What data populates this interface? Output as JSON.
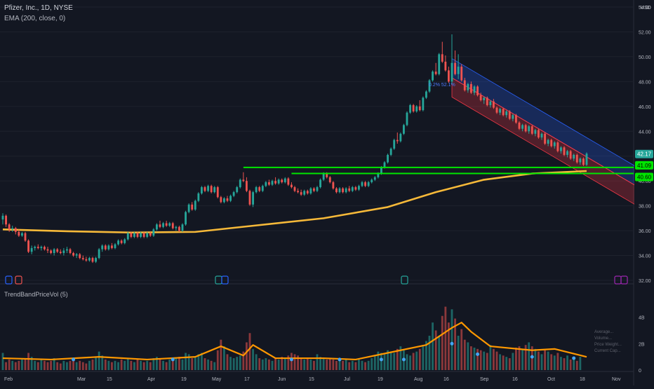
{
  "header": {
    "symbol_line": "Pfizer, Inc., 1D, NYSE",
    "indicator_line": "EMA (200, close, 0)",
    "sub_indicator": "TrendBandPriceVol (5)",
    "currency": "USD",
    "channel_label": "0.2%  52.1%",
    "vol_stats": [
      "Average...",
      "Volume...",
      "Price Weight...",
      "Current Cap..."
    ]
  },
  "chart_data": {
    "type": "candlestick",
    "x_axis_labels": [
      "Feb",
      "Mar",
      "15",
      "Apr",
      "19",
      "May",
      "17",
      "Jun",
      "15",
      "Jul",
      "19",
      "Aug",
      "16",
      "Sep",
      "16",
      "Oct",
      "18",
      "Nov"
    ],
    "price_axis": {
      "ticks": [
        "54.00",
        "52.00",
        "50.00",
        "48.00",
        "46.00",
        "44.00",
        "42.00",
        "40.00",
        "38.00",
        "36.00",
        "34.00",
        "32.00"
      ],
      "ylim": [
        32,
        54
      ]
    },
    "volume_axis": {
      "ticks": [
        "4B",
        "2B",
        "0"
      ]
    },
    "last_price": "42.17",
    "level_labels": [
      "41.09",
      "40.60"
    ],
    "ohlc": [
      [
        36.9,
        37.4,
        36.5,
        37.2
      ],
      [
        37.2,
        37.3,
        36.3,
        36.5
      ],
      [
        36.5,
        36.6,
        35.9,
        36.1
      ],
      [
        36.1,
        36.4,
        35.9,
        36.2
      ],
      [
        36.2,
        36.3,
        35.7,
        35.9
      ],
      [
        35.9,
        36.1,
        35.5,
        35.6
      ],
      [
        35.6,
        35.9,
        35.5,
        35.8
      ],
      [
        35.8,
        35.9,
        35.1,
        35.2
      ],
      [
        35.2,
        35.3,
        34.2,
        34.3
      ],
      [
        34.3,
        34.8,
        34.1,
        34.6
      ],
      [
        34.6,
        34.8,
        34.4,
        34.7
      ],
      [
        34.7,
        34.9,
        34.5,
        34.6
      ],
      [
        34.6,
        34.8,
        34.4,
        34.7
      ],
      [
        34.7,
        34.8,
        34.4,
        34.5
      ],
      [
        34.5,
        34.7,
        34.2,
        34.4
      ],
      [
        34.4,
        34.5,
        34.1,
        34.2
      ],
      [
        34.2,
        34.6,
        34.0,
        34.5
      ],
      [
        34.5,
        34.6,
        34.2,
        34.3
      ],
      [
        34.3,
        34.5,
        34.1,
        34.2
      ],
      [
        34.2,
        34.6,
        34.0,
        34.4
      ],
      [
        34.4,
        34.7,
        34.2,
        34.5
      ],
      [
        34.5,
        34.6,
        34.1,
        34.2
      ],
      [
        34.2,
        34.3,
        33.9,
        34.0
      ],
      [
        34.0,
        34.2,
        33.8,
        34.1
      ],
      [
        34.1,
        34.2,
        33.7,
        33.8
      ],
      [
        33.8,
        34.0,
        33.6,
        33.7
      ],
      [
        33.7,
        33.9,
        33.5,
        33.6
      ],
      [
        33.6,
        33.9,
        33.5,
        33.8
      ],
      [
        33.8,
        33.9,
        33.4,
        33.5
      ],
      [
        33.5,
        33.9,
        33.4,
        33.8
      ],
      [
        33.8,
        34.6,
        33.7,
        34.5
      ],
      [
        34.5,
        34.9,
        34.3,
        34.8
      ],
      [
        34.8,
        34.9,
        34.4,
        34.5
      ],
      [
        34.5,
        34.9,
        34.4,
        34.8
      ],
      [
        34.8,
        35.0,
        34.5,
        34.6
      ],
      [
        34.6,
        35.0,
        34.5,
        34.9
      ],
      [
        34.9,
        35.3,
        34.8,
        35.2
      ],
      [
        35.2,
        35.3,
        34.9,
        35.0
      ],
      [
        35.0,
        35.4,
        34.9,
        35.3
      ],
      [
        35.3,
        35.9,
        35.2,
        35.8
      ],
      [
        35.8,
        35.9,
        35.4,
        35.5
      ],
      [
        35.5,
        35.9,
        35.4,
        35.8
      ],
      [
        35.8,
        35.9,
        35.4,
        35.5
      ],
      [
        35.5,
        35.9,
        35.4,
        35.8
      ],
      [
        35.8,
        35.9,
        35.4,
        35.5
      ],
      [
        35.5,
        35.9,
        35.4,
        35.8
      ],
      [
        35.8,
        35.9,
        35.5,
        35.6
      ],
      [
        35.6,
        36.2,
        35.5,
        36.1
      ],
      [
        36.1,
        36.6,
        36.0,
        36.5
      ],
      [
        36.5,
        36.8,
        36.2,
        36.3
      ],
      [
        36.3,
        36.7,
        36.2,
        36.6
      ],
      [
        36.6,
        36.8,
        36.3,
        36.4
      ],
      [
        36.4,
        36.7,
        36.3,
        36.6
      ],
      [
        36.6,
        36.7,
        36.1,
        36.2
      ],
      [
        36.2,
        36.4,
        36.0,
        36.3
      ],
      [
        36.3,
        36.4,
        35.9,
        36.0
      ],
      [
        36.0,
        36.6,
        35.9,
        36.5
      ],
      [
        36.5,
        37.6,
        36.4,
        37.5
      ],
      [
        37.5,
        38.2,
        37.4,
        38.1
      ],
      [
        38.1,
        38.3,
        37.6,
        37.7
      ],
      [
        37.7,
        38.5,
        37.6,
        38.4
      ],
      [
        38.4,
        39.1,
        38.3,
        39.0
      ],
      [
        39.0,
        39.6,
        38.9,
        39.5
      ],
      [
        39.5,
        39.6,
        39.1,
        39.2
      ],
      [
        39.2,
        39.7,
        39.1,
        39.6
      ],
      [
        39.6,
        39.7,
        39.0,
        39.1
      ],
      [
        39.1,
        39.6,
        39.0,
        39.5
      ],
      [
        39.5,
        39.6,
        38.6,
        38.7
      ],
      [
        38.7,
        38.8,
        38.2,
        38.3
      ],
      [
        38.3,
        38.7,
        38.2,
        38.6
      ],
      [
        38.6,
        38.8,
        38.3,
        38.4
      ],
      [
        38.4,
        38.9,
        38.3,
        38.8
      ],
      [
        38.8,
        39.2,
        38.7,
        39.1
      ],
      [
        39.1,
        39.6,
        39.0,
        39.5
      ],
      [
        39.5,
        40.2,
        39.4,
        40.1
      ],
      [
        40.1,
        40.7,
        39.9,
        40.0
      ],
      [
        40.0,
        40.3,
        39.1,
        39.2
      ],
      [
        39.2,
        39.3,
        38.0,
        38.1
      ],
      [
        38.1,
        39.2,
        37.9,
        39.1
      ],
      [
        39.1,
        39.6,
        39.0,
        39.5
      ],
      [
        39.5,
        39.6,
        39.1,
        39.2
      ],
      [
        39.2,
        39.7,
        39.1,
        39.6
      ],
      [
        39.6,
        40.0,
        39.5,
        39.9
      ],
      [
        39.9,
        40.1,
        39.6,
        39.7
      ],
      [
        39.7,
        40.1,
        39.6,
        40.0
      ],
      [
        40.0,
        40.3,
        39.7,
        39.8
      ],
      [
        39.8,
        40.2,
        39.7,
        40.1
      ],
      [
        40.1,
        40.2,
        39.8,
        39.9
      ],
      [
        39.9,
        40.3,
        39.8,
        40.2
      ],
      [
        40.2,
        40.3,
        39.6,
        39.7
      ],
      [
        39.7,
        39.9,
        39.4,
        39.5
      ],
      [
        39.5,
        39.6,
        39.1,
        39.2
      ],
      [
        39.2,
        39.4,
        39.0,
        39.1
      ],
      [
        39.1,
        39.3,
        38.8,
        38.9
      ],
      [
        38.9,
        39.3,
        38.8,
        39.2
      ],
      [
        39.2,
        39.3,
        38.9,
        39.0
      ],
      [
        39.0,
        39.5,
        38.9,
        39.4
      ],
      [
        39.4,
        39.5,
        39.1,
        39.2
      ],
      [
        39.2,
        39.6,
        39.1,
        39.5
      ],
      [
        39.5,
        40.2,
        39.4,
        40.1
      ],
      [
        40.1,
        40.7,
        40.0,
        40.6
      ],
      [
        40.6,
        40.7,
        40.2,
        40.3
      ],
      [
        40.3,
        40.4,
        39.8,
        39.9
      ],
      [
        39.9,
        40.0,
        39.3,
        39.4
      ],
      [
        39.4,
        39.5,
        39.0,
        39.1
      ],
      [
        39.1,
        39.5,
        39.0,
        39.4
      ],
      [
        39.4,
        39.5,
        39.0,
        39.1
      ],
      [
        39.1,
        39.5,
        39.0,
        39.4
      ],
      [
        39.4,
        39.6,
        39.1,
        39.2
      ],
      [
        39.2,
        39.6,
        39.1,
        39.5
      ],
      [
        39.5,
        39.6,
        39.2,
        39.3
      ],
      [
        39.3,
        39.7,
        39.2,
        39.6
      ],
      [
        39.6,
        40.0,
        39.5,
        39.9
      ],
      [
        39.9,
        40.0,
        39.5,
        39.6
      ],
      [
        39.6,
        40.0,
        39.5,
        39.9
      ],
      [
        39.9,
        40.2,
        39.8,
        40.1
      ],
      [
        40.1,
        40.4,
        40.0,
        40.3
      ],
      [
        40.3,
        40.7,
        40.2,
        40.6
      ],
      [
        40.6,
        41.2,
        40.5,
        41.1
      ],
      [
        41.1,
        41.6,
        41.0,
        41.5
      ],
      [
        41.5,
        42.2,
        41.4,
        42.1
      ],
      [
        42.1,
        42.7,
        42.0,
        42.6
      ],
      [
        42.6,
        43.4,
        42.5,
        43.3
      ],
      [
        43.3,
        43.9,
        43.0,
        43.2
      ],
      [
        43.2,
        43.9,
        43.1,
        43.8
      ],
      [
        43.8,
        44.6,
        43.7,
        44.5
      ],
      [
        44.5,
        45.6,
        44.4,
        45.5
      ],
      [
        45.5,
        46.2,
        45.4,
        46.1
      ],
      [
        46.1,
        46.2,
        45.5,
        45.6
      ],
      [
        45.6,
        46.1,
        45.5,
        46.0
      ],
      [
        46.0,
        46.5,
        45.6,
        45.7
      ],
      [
        45.7,
        46.8,
        45.6,
        46.7
      ],
      [
        46.7,
        47.3,
        46.6,
        47.2
      ],
      [
        47.2,
        48.2,
        47.1,
        48.1
      ],
      [
        48.1,
        48.9,
        48.0,
        48.8
      ],
      [
        48.8,
        49.5,
        48.5,
        48.6
      ],
      [
        48.6,
        50.3,
        48.5,
        50.2
      ],
      [
        50.2,
        51.2,
        49.5,
        49.6
      ],
      [
        49.6,
        50.1,
        48.8,
        48.9
      ],
      [
        48.9,
        49.2,
        47.9,
        48.0
      ],
      [
        48.0,
        51.8,
        47.8,
        49.5
      ],
      [
        49.5,
        50.5,
        48.5,
        48.6
      ],
      [
        48.6,
        50.2,
        48.2,
        49.2
      ],
      [
        49.2,
        49.4,
        48.0,
        48.1
      ],
      [
        48.1,
        48.3,
        47.2,
        47.3
      ],
      [
        47.3,
        47.9,
        47.1,
        47.8
      ],
      [
        47.8,
        48.0,
        47.0,
        47.1
      ],
      [
        47.1,
        47.7,
        46.9,
        47.6
      ],
      [
        47.6,
        47.7,
        46.8,
        46.9
      ],
      [
        46.9,
        47.1,
        46.4,
        46.5
      ],
      [
        46.5,
        46.8,
        46.2,
        46.7
      ],
      [
        46.7,
        46.8,
        46.0,
        46.1
      ],
      [
        46.1,
        46.5,
        45.9,
        46.4
      ],
      [
        46.4,
        46.6,
        45.8,
        45.9
      ],
      [
        45.9,
        46.0,
        45.4,
        45.5
      ],
      [
        45.5,
        45.9,
        45.3,
        45.8
      ],
      [
        45.8,
        45.9,
        45.2,
        45.3
      ],
      [
        45.3,
        45.7,
        45.1,
        45.6
      ],
      [
        45.6,
        45.7,
        44.9,
        45.0
      ],
      [
        45.0,
        45.4,
        44.8,
        45.3
      ],
      [
        45.3,
        45.4,
        44.6,
        44.7
      ],
      [
        44.7,
        44.8,
        44.1,
        44.2
      ],
      [
        44.2,
        44.6,
        44.0,
        44.5
      ],
      [
        44.5,
        44.6,
        43.9,
        44.0
      ],
      [
        44.0,
        44.5,
        43.8,
        44.4
      ],
      [
        44.4,
        44.5,
        43.7,
        43.8
      ],
      [
        43.8,
        44.2,
        43.6,
        44.1
      ],
      [
        44.1,
        44.2,
        43.4,
        43.5
      ],
      [
        43.5,
        43.9,
        43.3,
        43.8
      ],
      [
        43.8,
        43.9,
        42.9,
        43.0
      ],
      [
        43.0,
        43.4,
        42.8,
        43.3
      ],
      [
        43.3,
        43.4,
        42.7,
        42.8
      ],
      [
        42.8,
        43.2,
        42.6,
        43.1
      ],
      [
        43.1,
        43.2,
        42.3,
        42.4
      ],
      [
        42.4,
        42.8,
        42.2,
        42.7
      ],
      [
        42.7,
        42.8,
        42.0,
        42.1
      ],
      [
        42.1,
        42.5,
        41.9,
        42.4
      ],
      [
        42.4,
        42.5,
        41.7,
        41.8
      ],
      [
        41.8,
        42.2,
        41.6,
        42.1
      ],
      [
        42.1,
        42.2,
        41.4,
        41.5
      ],
      [
        41.5,
        41.9,
        41.3,
        41.8
      ],
      [
        41.8,
        41.9,
        41.2,
        41.3
      ],
      [
        41.3,
        42.3,
        41.2,
        42.2
      ]
    ],
    "volume": [
      1.3,
      0.6,
      0.8,
      0.7,
      0.6,
      0.7,
      0.8,
      0.9,
      1.3,
      1.0,
      0.7,
      0.6,
      0.8,
      0.7,
      0.6,
      0.7,
      0.9,
      0.6,
      0.5,
      0.7,
      0.6,
      0.7,
      0.8,
      0.6,
      0.7,
      0.6,
      0.5,
      0.7,
      0.8,
      1.0,
      1.4,
      1.1,
      0.8,
      0.7,
      0.6,
      0.7,
      0.6,
      0.8,
      0.7,
      0.9,
      0.7,
      0.6,
      0.8,
      0.7,
      0.6,
      0.7,
      0.6,
      0.9,
      1.0,
      0.8,
      0.7,
      0.6,
      0.8,
      0.7,
      0.9,
      1.0,
      0.8,
      1.3,
      1.2,
      0.9,
      1.0,
      1.2,
      1.3,
      0.9,
      0.8,
      0.7,
      0.6,
      1.5,
      2.3,
      1.8,
      1.2,
      1.0,
      0.9,
      1.0,
      1.1,
      1.4,
      2.1,
      2.8,
      1.6,
      1.2,
      0.9,
      0.8,
      0.9,
      0.8,
      0.7,
      0.9,
      0.8,
      1.0,
      0.9,
      1.1,
      1.3,
      1.2,
      1.1,
      0.9,
      0.8,
      0.9,
      0.8,
      0.7,
      1.2,
      1.0,
      0.9,
      0.8,
      0.9,
      0.8,
      0.7,
      0.8,
      0.7,
      0.8,
      0.6,
      0.7,
      0.6,
      0.8,
      0.7,
      0.6,
      0.7,
      0.9,
      1.1,
      1.4,
      1.3,
      1.2,
      1.5,
      1.4,
      1.3,
      1.6,
      1.8,
      1.5,
      1.2,
      1.1,
      1.3,
      1.4,
      1.6,
      1.9,
      2.2,
      2.6,
      3.6,
      3.0,
      2.6,
      4.1,
      4.8,
      3.6,
      4.6,
      3.9,
      2.6,
      3.1,
      2.3,
      2.1,
      1.8,
      1.7,
      1.6,
      1.5,
      1.4,
      1.3,
      1.9,
      1.6,
      1.4,
      1.2,
      1.1,
      1.0,
      0.9,
      1.3,
      1.7,
      1.8,
      1.6,
      1.9,
      2.1,
      1.8,
      1.6,
      1.4,
      1.2,
      1.5,
      1.4,
      1.2,
      1.1,
      1.3,
      1.0,
      0.9,
      1.1,
      0.8,
      0.9,
      0.7,
      1.0
    ],
    "ema200": [
      [
        0,
        36.1
      ],
      [
        20,
        35.95
      ],
      [
        40,
        35.85
      ],
      [
        60,
        35.9
      ],
      [
        80,
        36.45
      ],
      [
        100,
        37.0
      ],
      [
        120,
        37.9
      ],
      [
        135,
        39.1
      ],
      [
        150,
        40.1
      ],
      [
        165,
        40.6
      ],
      [
        182,
        40.8
      ]
    ],
    "volume_ma": [
      [
        0,
        0.9
      ],
      [
        15,
        0.8
      ],
      [
        30,
        1.0
      ],
      [
        45,
        0.8
      ],
      [
        60,
        1.0
      ],
      [
        68,
        1.8
      ],
      [
        75,
        1.1
      ],
      [
        78,
        1.9
      ],
      [
        85,
        0.9
      ],
      [
        100,
        0.9
      ],
      [
        110,
        0.8
      ],
      [
        120,
        1.3
      ],
      [
        132,
        1.9
      ],
      [
        140,
        3.2
      ],
      [
        143,
        3.6
      ],
      [
        146,
        2.9
      ],
      [
        152,
        1.8
      ],
      [
        165,
        1.5
      ],
      [
        172,
        1.6
      ],
      [
        182,
        1.0
      ]
    ],
    "support_lines": [
      {
        "value": 41.09,
        "start": 75
      },
      {
        "value": 40.6,
        "start": 90
      }
    ],
    "channel": {
      "start_index": 140,
      "end_index": 208,
      "start_center": 48.3,
      "end_center": 38.0,
      "half_width": 1.55
    }
  }
}
